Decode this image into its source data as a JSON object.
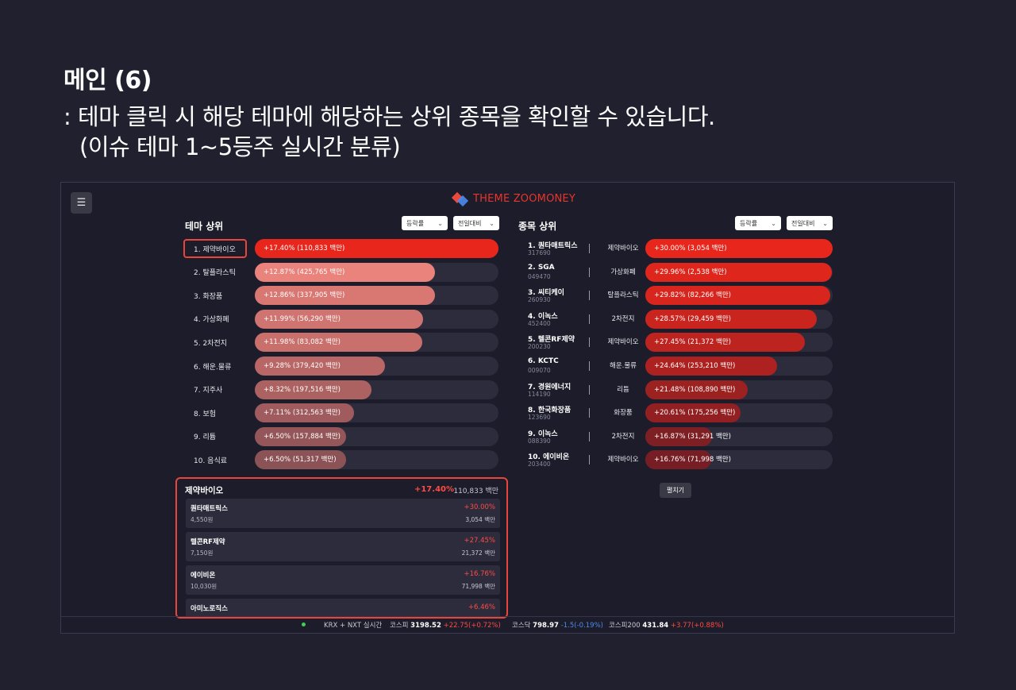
{
  "slide": {
    "title": "메인 (6)",
    "desc_line1": ": 테마 클릭 시 해당 테마에 해당하는 상위 종목을 확인할 수 있습니다.",
    "desc_line2": "(이슈 테마 1~5등주 실시간 분류)"
  },
  "app": {
    "menu_icon": "☰",
    "brand": "THEME ZOOMONEY",
    "colors": {
      "accent": "#e8362c",
      "up": "#ff4b44",
      "down": "#4b8cf0",
      "background": "#1c1c2a"
    }
  },
  "themes_panel": {
    "heading": "테마 상위",
    "sort_select": "등락률",
    "period_select": "전일대비",
    "items": [
      {
        "label": "1. 제약바이오",
        "value": "+17.40% (110,833 백만)",
        "pct": 17.4,
        "color": "#e8261b"
      },
      {
        "label": "2. 탈플라스틱",
        "value": "+12.87% (425,765 백만)",
        "pct": 12.87,
        "color": "#e9837c"
      },
      {
        "label": "3. 화장품",
        "value": "+12.86% (337,905 백만)",
        "pct": 12.86,
        "color": "#d97873"
      },
      {
        "label": "4. 가상화폐",
        "value": "+11.99% (56,290 백만)",
        "pct": 11.99,
        "color": "#cf7470"
      },
      {
        "label": "5. 2차전지",
        "value": "+11.98% (83,082 백만)",
        "pct": 11.98,
        "color": "#c9706c"
      },
      {
        "label": "6. 해운.물류",
        "value": "+9.28% (379,420 백만)",
        "pct": 9.28,
        "color": "#b96766"
      },
      {
        "label": "7. 지주사",
        "value": "+8.32% (197,516 백만)",
        "pct": 8.32,
        "color": "#ad6262"
      },
      {
        "label": "8. 보험",
        "value": "+7.11% (312,563 백만)",
        "pct": 7.11,
        "color": "#9f5b5e"
      },
      {
        "label": "9. 리튬",
        "value": "+6.50% (157,884 백만)",
        "pct": 6.5,
        "color": "#945659"
      },
      {
        "label": "10. 음식료",
        "value": "+6.50% (51,317 백만)",
        "pct": 6.5,
        "color": "#8c5357"
      }
    ]
  },
  "stocks_panel": {
    "heading": "종목 상위",
    "sort_select": "등락률",
    "period_select": "전일대비",
    "expand_button": "펼치기",
    "items": [
      {
        "name": "1. 퀀타매트릭스",
        "code": "317690",
        "theme": "제약바이오",
        "value": "+30.00% (3,054 백만)",
        "pct": 30.0,
        "color": "#e8261b"
      },
      {
        "name": "2. SGA",
        "code": "049470",
        "theme": "가상화폐",
        "value": "+29.96% (2,538 백만)",
        "pct": 29.96,
        "color": "#df261c"
      },
      {
        "name": "3. 씨티케이",
        "code": "260930",
        "theme": "탈플라스틱",
        "value": "+29.82% (82,266 백만)",
        "pct": 29.82,
        "color": "#d8251d"
      },
      {
        "name": "4. 이녹스",
        "code": "452400",
        "theme": "2차전지",
        "value": "+28.57% (29,459 백만)",
        "pct": 28.57,
        "color": "#c9241e"
      },
      {
        "name": "5. 텔콘RF제약",
        "code": "200230",
        "theme": "제약바이오",
        "value": "+27.45% (21,372 백만)",
        "pct": 27.45,
        "color": "#bd231f"
      },
      {
        "name": "6. KCTC",
        "code": "009070",
        "theme": "해운.물류",
        "value": "+24.64% (253,210 백만)",
        "pct": 24.64,
        "color": "#ad2220"
      },
      {
        "name": "7. 경원에너지",
        "code": "114190",
        "theme": "리튬",
        "value": "+21.48% (108,890 백만)",
        "pct": 21.48,
        "color": "#9c2121"
      },
      {
        "name": "8. 한국화장품",
        "code": "123690",
        "theme": "화장품",
        "value": "+20.61% (175,256 백만)",
        "pct": 20.61,
        "color": "#922022"
      },
      {
        "name": "9. 이녹스",
        "code": "088390",
        "theme": "2차전지",
        "value": "+16.87% (31,291 백만)",
        "pct": 16.87,
        "color": "#7e1f24"
      },
      {
        "name": "10. 에이비온",
        "code": "203400",
        "theme": "제약바이오",
        "value": "+16.76% (71,998 백만)",
        "pct": 16.76,
        "color": "#771e25"
      }
    ]
  },
  "detail": {
    "title": "제약바이오",
    "pct": "+17.40%",
    "amount": "110,833 백만",
    "cards": [
      {
        "name": "퀀타매트릭스",
        "price": "4,550원",
        "pct": "+30.00%",
        "amount": "3,054 백만"
      },
      {
        "name": "텔콘RF제약",
        "price": "7,150원",
        "pct": "+27.45%",
        "amount": "21,372 백만"
      },
      {
        "name": "에이비온",
        "price": "10,030원",
        "pct": "+16.76%",
        "amount": "71,998 백만"
      },
      {
        "name": "아미노로직스",
        "price": "",
        "pct": "+6.46%",
        "amount": ""
      }
    ]
  },
  "ticker": {
    "source": "KRX + NXT 실시간",
    "kospi_label": "코스피",
    "kospi_value": "3198.52",
    "kospi_change": "+22.75(+0.72%)",
    "kosdaq_label": "코스닥",
    "kosdaq_value": "798.97",
    "kosdaq_change": "-1.5(-0.19%)",
    "kospi200_label": "코스피200",
    "kospi200_value": "431.84",
    "kospi200_change": "+3.77(+0.88%)"
  }
}
